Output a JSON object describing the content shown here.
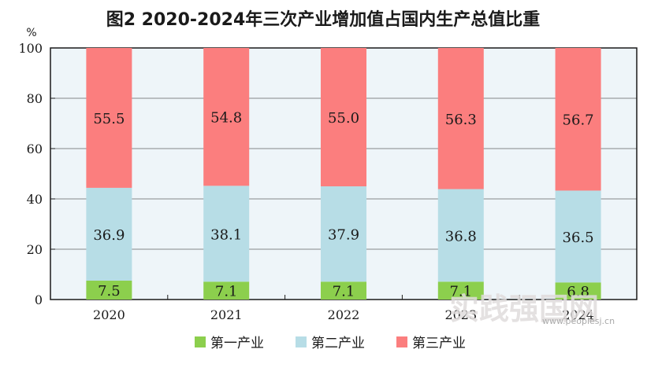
{
  "chart_data": {
    "type": "bar",
    "stacked": true,
    "title": "图2   2020-2024年三次产业增加值占国内生产总值比重",
    "yunit": "%",
    "ylim": [
      0,
      100
    ],
    "yticks": [
      0,
      20,
      40,
      60,
      80,
      100
    ],
    "categories": [
      "2020",
      "2021",
      "2022",
      "2023",
      "2024"
    ],
    "series": [
      {
        "name": "第一产业",
        "color": "#8ccf4d",
        "values": [
          7.5,
          7.1,
          7.1,
          7.1,
          6.8
        ]
      },
      {
        "name": "第二产业",
        "color": "#b7dde6",
        "values": [
          36.9,
          38.1,
          37.9,
          36.8,
          36.5
        ]
      },
      {
        "name": "第三产业",
        "color": "#fb7e7e",
        "values": [
          55.5,
          54.8,
          55.0,
          56.3,
          56.7
        ]
      }
    ],
    "plot_background": "#eef5f9",
    "legend_position": "bottom"
  },
  "watermark": {
    "name": "实践强国网",
    "url": "www.peoplesj.cn"
  }
}
